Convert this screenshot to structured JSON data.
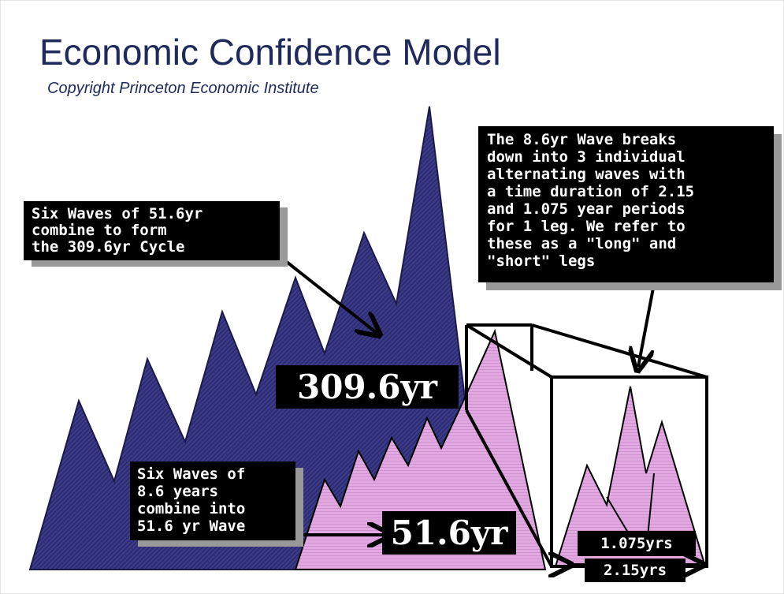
{
  "header": {
    "title": "Economic Confidence Model",
    "subtitle": "Copyright Princeton Economic Institute"
  },
  "callouts": [
    {
      "lines": [
        "Six Waves of 51.6yr",
        "combine to form",
        "the 309.6yr Cycle"
      ]
    },
    {
      "lines": [
        "The 8.6yr Wave breaks",
        "down into 3 individual",
        "alternating waves with",
        "a time duration of 2.15",
        "and 1.075 year periods",
        "for 1 leg. We refer to",
        "these as a \"long\" and",
        "\"short\" legs"
      ]
    },
    {
      "lines": [
        "Six Waves of",
        "8.6 years",
        "combine into",
        "51.6 yr Wave"
      ]
    }
  ],
  "labels": [
    "309.6yr",
    "51.6yr",
    "1.075yrs",
    "2.15yrs"
  ]
}
